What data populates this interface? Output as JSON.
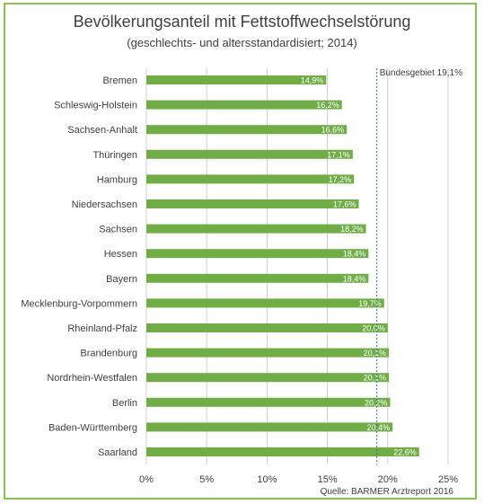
{
  "chart_data": {
    "type": "bar",
    "orientation": "horizontal",
    "title": "Bevölkerungsanteil mit Fettstoffwechselstörung",
    "subtitle": "(geschlechts- und altersstandardisiert; 2014)",
    "categories": [
      "Bremen",
      "Schleswig-Holstein",
      "Sachsen-Anhalt",
      "Thüringen",
      "Hamburg",
      "Niedersachsen",
      "Sachsen",
      "Hessen",
      "Bayern",
      "Mecklenburg-Vorpommern",
      "Rheinland-Pfalz",
      "Brandenburg",
      "Nordrhein-Westfalen",
      "Berlin",
      "Baden-Württemberg",
      "Saarland"
    ],
    "values": [
      14.9,
      16.2,
      16.6,
      17.1,
      17.2,
      17.6,
      18.2,
      18.4,
      18.4,
      19.7,
      20.0,
      20.1,
      20.1,
      20.2,
      20.4,
      22.6
    ],
    "data_labels": [
      "14,9%",
      "16,2%",
      "16,6%",
      "17,1%",
      "17,2%",
      "17,6%",
      "18,2%",
      "18,4%",
      "18,4%",
      "19,7%",
      "20,0%",
      "20,1%",
      "20,1%",
      "20,2%",
      "20,4%",
      "22,6%"
    ],
    "xlim": [
      0,
      25
    ],
    "x_ticks": [
      0,
      5,
      10,
      15,
      20,
      25
    ],
    "x_tick_labels": [
      "0%",
      "5%",
      "10%",
      "15%",
      "20%",
      "25%"
    ],
    "grid": true,
    "reference_line": {
      "value": 19.1,
      "label": "Bundesgebiet 19,1%"
    },
    "bar_color": "#70ad47",
    "reference_color": "#2e75b6",
    "source": "Quelle: BARMER Arztreport 2016"
  }
}
